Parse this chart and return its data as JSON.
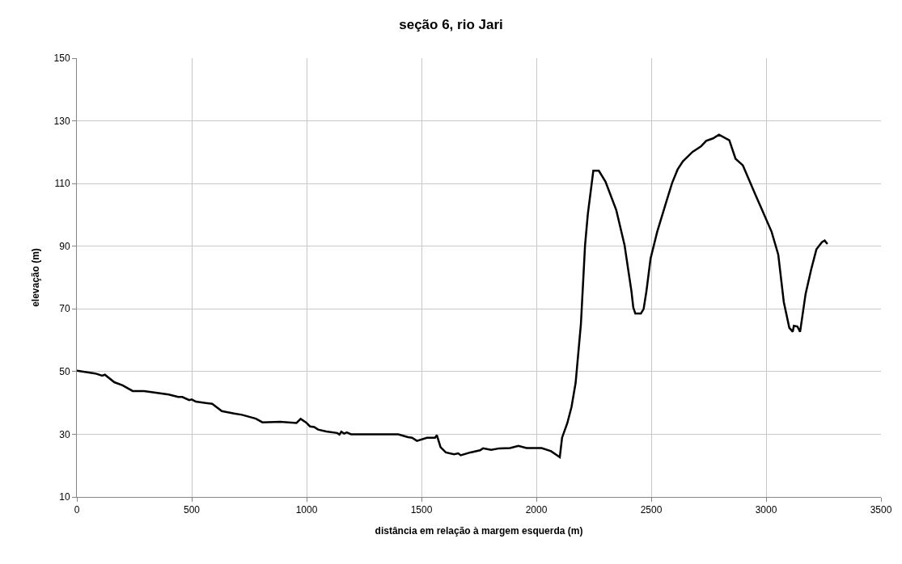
{
  "chart_data": {
    "type": "line",
    "title": "seção 6, rio Jari",
    "xlabel": "distância em relação à margem esquerda (m)",
    "ylabel": "elevação (m)",
    "xlim": [
      0,
      3500
    ],
    "xticks": [
      0,
      500,
      1000,
      1500,
      2000,
      2500,
      3000,
      3500
    ],
    "ylim": [
      10,
      150
    ],
    "yticks": [
      10,
      30,
      50,
      70,
      90,
      110,
      130,
      150
    ],
    "grid": true,
    "marker": "none",
    "line_style": "solid",
    "series": [
      {
        "color": "#000000",
        "x": [
          0,
          80,
          110,
          122,
          163,
          199,
          243,
          293,
          400,
          441,
          459,
          489,
          500,
          518,
          589,
          631,
          684,
          719,
          779,
          808,
          885,
          956,
          974,
          997,
          1015,
          1033,
          1050,
          1086,
          1133,
          1143,
          1151,
          1163,
          1175,
          1193,
          1399,
          1441,
          1459,
          1480,
          1524,
          1559,
          1567,
          1583,
          1606,
          1642,
          1660,
          1671,
          1713,
          1755,
          1768,
          1803,
          1839,
          1886,
          1922,
          1957,
          2023,
          2064,
          2102,
          2112,
          2135,
          2153,
          2171,
          2194,
          2212,
          2224,
          2248,
          2272,
          2301,
          2348,
          2384,
          2414,
          2422,
          2431,
          2455,
          2467,
          2479,
          2497,
          2526,
          2562,
          2591,
          2615,
          2638,
          2680,
          2716,
          2739,
          2769,
          2795,
          2840,
          2867,
          2899,
          2952,
          3024,
          3053,
          3077,
          3101,
          3116,
          3121,
          3136,
          3148,
          3172,
          3196,
          3219,
          3243,
          3255,
          3267
        ],
        "values": [
          50.3,
          49.4,
          48.7,
          49,
          46.6,
          45.6,
          43.8,
          43.8,
          42.7,
          41.9,
          41.9,
          40.9,
          41.1,
          40.4,
          39.7,
          37.4,
          36.6,
          36.2,
          35,
          33.8,
          34,
          33.6,
          34.9,
          33.8,
          32.5,
          32.3,
          31.5,
          30.9,
          30.4,
          29.9,
          30.8,
          30.2,
          30.6,
          30,
          30,
          29.1,
          28.9,
          27.9,
          28.9,
          28.9,
          29.7,
          25.9,
          24.2,
          23.6,
          23.9,
          23.3,
          24.2,
          24.9,
          25.5,
          25.0,
          25.5,
          25.6,
          26.3,
          25.6,
          25.6,
          24.6,
          22.7,
          28.9,
          33.6,
          38.7,
          46.4,
          65.2,
          90.3,
          100.2,
          114.1,
          114.1,
          110.6,
          101.5,
          90.3,
          75.6,
          70.4,
          68.5,
          68.5,
          70,
          75.6,
          86,
          94.6,
          103.3,
          110.2,
          114.5,
          117.1,
          120.1,
          121.8,
          123.6,
          124.4,
          125.6,
          123.8,
          117.9,
          115.8,
          106.7,
          94.6,
          87.3,
          72.2,
          64,
          62.7,
          64.6,
          64.4,
          62.7,
          74.8,
          82.5,
          89,
          91.3,
          91.8,
          90.7
        ]
      }
    ]
  }
}
